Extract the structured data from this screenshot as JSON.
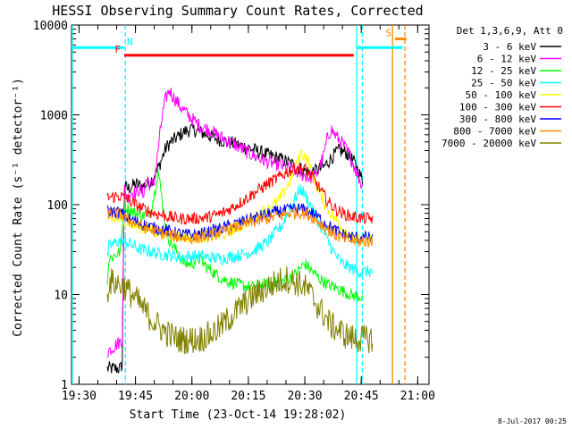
{
  "chart_data": {
    "type": "line",
    "title": "HESSI Observing Summary Count Rates, Corrected",
    "xlabel": "Start Time (23-Oct-14 19:28:02)",
    "ylabel": "Corrected Count Rate (s⁻¹ detector⁻¹)",
    "footer": "8-Jul-2017 00:25",
    "x_unit": "minutes since 19:28:02",
    "xlim": [
      0,
      95
    ],
    "ylim": [
      1,
      10000
    ],
    "yscale": "log",
    "x_ticks": [
      {
        "label": "19:30",
        "x": 2
      },
      {
        "label": "19:45",
        "x": 17
      },
      {
        "label": "20:00",
        "x": 32
      },
      {
        "label": "20:15",
        "x": 47
      },
      {
        "label": "20:30",
        "x": 62
      },
      {
        "label": "20:45",
        "x": 77
      },
      {
        "label": "21:00",
        "x": 92
      }
    ],
    "y_ticks": [
      {
        "label": "1",
        "y": 1
      },
      {
        "label": "10",
        "y": 10
      },
      {
        "label": "100",
        "y": 100
      },
      {
        "label": "1000",
        "y": 1000
      },
      {
        "label": "10000",
        "y": 10000
      }
    ],
    "legend_header": "Det 1,3,6,9, Att 0",
    "legend_position": "right",
    "series": [
      {
        "name": "3 - 6 keV",
        "color": "#000000",
        "points": [
          [
            9.5,
            1.5
          ],
          [
            13,
            1.5
          ],
          [
            13.5,
            1.7
          ],
          [
            14,
            160
          ],
          [
            15,
            150
          ],
          [
            17,
            170
          ],
          [
            19,
            160
          ],
          [
            21,
            180
          ],
          [
            23,
            250
          ],
          [
            25,
            420
          ],
          [
            26,
            480
          ],
          [
            28,
            560
          ],
          [
            30,
            650
          ],
          [
            32,
            690
          ],
          [
            34,
            650
          ],
          [
            36,
            600
          ],
          [
            38,
            550
          ],
          [
            40,
            520
          ],
          [
            43,
            480
          ],
          [
            46,
            440
          ],
          [
            49,
            400
          ],
          [
            52,
            360
          ],
          [
            55,
            330
          ],
          [
            58,
            290
          ],
          [
            61,
            250
          ],
          [
            63,
            230
          ],
          [
            65,
            240
          ],
          [
            67,
            260
          ],
          [
            69,
            330
          ],
          [
            71,
            400
          ],
          [
            73,
            380
          ],
          [
            75,
            300
          ],
          [
            76,
            250
          ],
          [
            77,
            200
          ],
          [
            77.5,
            170
          ]
        ]
      },
      {
        "name": "6 - 12 keV",
        "color": "#ff00ff",
        "points": [
          [
            9.5,
            2.3
          ],
          [
            12,
            2.8
          ],
          [
            13,
            3.0
          ],
          [
            13.5,
            3.2
          ],
          [
            14,
            150
          ],
          [
            15,
            120
          ],
          [
            16,
            140
          ],
          [
            17,
            130
          ],
          [
            18,
            150
          ],
          [
            19,
            130
          ],
          [
            20,
            200
          ],
          [
            21,
            160
          ],
          [
            22,
            180
          ],
          [
            23,
            400
          ],
          [
            24,
            900
          ],
          [
            25,
            1500
          ],
          [
            26,
            1900
          ],
          [
            27,
            1600
          ],
          [
            28,
            1400
          ],
          [
            30,
            1100
          ],
          [
            32,
            900
          ],
          [
            34,
            760
          ],
          [
            36,
            700
          ],
          [
            38,
            620
          ],
          [
            40,
            550
          ],
          [
            43,
            480
          ],
          [
            46,
            400
          ],
          [
            49,
            340
          ],
          [
            52,
            300
          ],
          [
            55,
            280
          ],
          [
            58,
            250
          ],
          [
            61,
            220
          ],
          [
            63,
            200
          ],
          [
            65,
            210
          ],
          [
            67,
            350
          ],
          [
            68,
            550
          ],
          [
            69,
            700
          ],
          [
            70,
            600
          ],
          [
            72,
            480
          ],
          [
            74,
            350
          ],
          [
            76,
            220
          ],
          [
            77.5,
            150
          ]
        ]
      },
      {
        "name": "12 - 25 keV",
        "color": "#00ff00",
        "points": [
          [
            9.5,
            15
          ],
          [
            10,
            25
          ],
          [
            13,
            30
          ],
          [
            14,
            100
          ],
          [
            15,
            90
          ],
          [
            17,
            80
          ],
          [
            19,
            75
          ],
          [
            21,
            85
          ],
          [
            22,
            130
          ],
          [
            23,
            240
          ],
          [
            24,
            120
          ],
          [
            25,
            60
          ],
          [
            26,
            40
          ],
          [
            28,
            30
          ],
          [
            30,
            22
          ],
          [
            32,
            22
          ],
          [
            34,
            25
          ],
          [
            36,
            20
          ],
          [
            40,
            15
          ],
          [
            44,
            13
          ],
          [
            48,
            12
          ],
          [
            52,
            13
          ],
          [
            56,
            14
          ],
          [
            59,
            16
          ],
          [
            61,
            20
          ],
          [
            62,
            22
          ],
          [
            63,
            20
          ],
          [
            64,
            18
          ],
          [
            66,
            15
          ],
          [
            68,
            13
          ],
          [
            70,
            12
          ],
          [
            72,
            11
          ],
          [
            74,
            10
          ],
          [
            76,
            9.5
          ],
          [
            77.5,
            9.5
          ]
        ]
      },
      {
        "name": "25 - 50 keV",
        "color": "#00ffff",
        "points": [
          [
            9.5,
            25
          ],
          [
            10,
            35
          ],
          [
            13,
            40
          ],
          [
            15,
            38
          ],
          [
            18,
            32
          ],
          [
            21,
            30
          ],
          [
            24,
            28
          ],
          [
            27,
            27
          ],
          [
            30,
            26
          ],
          [
            33,
            27
          ],
          [
            36,
            26
          ],
          [
            40,
            25
          ],
          [
            44,
            27
          ],
          [
            48,
            30
          ],
          [
            52,
            38
          ],
          [
            56,
            60
          ],
          [
            58,
            90
          ],
          [
            60,
            130
          ],
          [
            61,
            150
          ],
          [
            62,
            130
          ],
          [
            64,
            90
          ],
          [
            66,
            60
          ],
          [
            68,
            40
          ],
          [
            70,
            28
          ],
          [
            72,
            22
          ],
          [
            74,
            20
          ],
          [
            76,
            18
          ],
          [
            78,
            18
          ],
          [
            80,
            18
          ]
        ]
      },
      {
        "name": "50 - 100 keV",
        "color": "#ffff00",
        "points": [
          [
            9.5,
            65
          ],
          [
            13,
            70
          ],
          [
            16,
            60
          ],
          [
            19,
            55
          ],
          [
            22,
            50
          ],
          [
            25,
            47
          ],
          [
            28,
            45
          ],
          [
            32,
            43
          ],
          [
            36,
            44
          ],
          [
            40,
            46
          ],
          [
            44,
            55
          ],
          [
            48,
            70
          ],
          [
            52,
            90
          ],
          [
            55,
            110
          ],
          [
            58,
            180
          ],
          [
            60,
            300
          ],
          [
            61,
            380
          ],
          [
            62,
            350
          ],
          [
            63,
            300
          ],
          [
            64,
            220
          ],
          [
            66,
            130
          ],
          [
            68,
            90
          ],
          [
            70,
            70
          ],
          [
            72,
            55
          ],
          [
            74,
            45
          ],
          [
            76,
            40
          ],
          [
            78,
            40
          ],
          [
            80,
            40
          ]
        ]
      },
      {
        "name": "100 - 300 keV",
        "color": "#ff0000",
        "points": [
          [
            9.5,
            120
          ],
          [
            13,
            125
          ],
          [
            15,
            115
          ],
          [
            17,
            100
          ],
          [
            19,
            90
          ],
          [
            22,
            80
          ],
          [
            25,
            75
          ],
          [
            28,
            70
          ],
          [
            32,
            70
          ],
          [
            36,
            72
          ],
          [
            40,
            80
          ],
          [
            44,
            100
          ],
          [
            48,
            130
          ],
          [
            52,
            170
          ],
          [
            55,
            200
          ],
          [
            58,
            240
          ],
          [
            60,
            260
          ],
          [
            62,
            250
          ],
          [
            64,
            200
          ],
          [
            66,
            150
          ],
          [
            68,
            110
          ],
          [
            70,
            90
          ],
          [
            72,
            80
          ],
          [
            74,
            75
          ],
          [
            76,
            72
          ],
          [
            78,
            70
          ],
          [
            80,
            70
          ]
        ]
      },
      {
        "name": "300 - 800 keV",
        "color": "#0000ff",
        "points": [
          [
            9.5,
            85
          ],
          [
            13,
            82
          ],
          [
            15,
            70
          ],
          [
            17,
            65
          ],
          [
            19,
            60
          ],
          [
            22,
            55
          ],
          [
            25,
            52
          ],
          [
            28,
            48
          ],
          [
            31,
            46
          ],
          [
            34,
            47
          ],
          [
            37,
            50
          ],
          [
            40,
            55
          ],
          [
            43,
            60
          ],
          [
            46,
            66
          ],
          [
            49,
            72
          ],
          [
            52,
            78
          ],
          [
            55,
            84
          ],
          [
            58,
            88
          ],
          [
            60,
            90
          ],
          [
            62,
            88
          ],
          [
            64,
            80
          ],
          [
            66,
            70
          ],
          [
            68,
            60
          ],
          [
            70,
            52
          ],
          [
            72,
            47
          ],
          [
            74,
            44
          ],
          [
            76,
            43
          ],
          [
            78,
            43
          ],
          [
            80,
            43
          ]
        ]
      },
      {
        "name": "800 - 7000 keV",
        "color": "#ff8800",
        "points": [
          [
            9.5,
            80
          ],
          [
            13,
            78
          ],
          [
            15,
            68
          ],
          [
            17,
            62
          ],
          [
            19,
            56
          ],
          [
            22,
            51
          ],
          [
            25,
            47
          ],
          [
            28,
            44
          ],
          [
            31,
            42
          ],
          [
            34,
            43
          ],
          [
            37,
            46
          ],
          [
            40,
            50
          ],
          [
            43,
            55
          ],
          [
            46,
            60
          ],
          [
            49,
            65
          ],
          [
            52,
            70
          ],
          [
            55,
            75
          ],
          [
            58,
            80
          ],
          [
            60,
            82
          ],
          [
            62,
            80
          ],
          [
            64,
            73
          ],
          [
            66,
            63
          ],
          [
            68,
            53
          ],
          [
            70,
            46
          ],
          [
            72,
            42
          ],
          [
            74,
            40
          ],
          [
            76,
            39
          ],
          [
            78,
            39
          ],
          [
            80,
            39
          ]
        ]
      },
      {
        "name": "7000 - 20000 keV",
        "color": "#808000",
        "points": [
          [
            9.5,
            10
          ],
          [
            10,
            14
          ],
          [
            13,
            13
          ],
          [
            15,
            11
          ],
          [
            17,
            9
          ],
          [
            19,
            7
          ],
          [
            21,
            5.5
          ],
          [
            23,
            4.5
          ],
          [
            25,
            3.8
          ],
          [
            28,
            3.2
          ],
          [
            31,
            3.1
          ],
          [
            34,
            3.2
          ],
          [
            37,
            3.6
          ],
          [
            40,
            4.5
          ],
          [
            43,
            6
          ],
          [
            46,
            8
          ],
          [
            49,
            10
          ],
          [
            52,
            12
          ],
          [
            55,
            14
          ],
          [
            57,
            15
          ],
          [
            59,
            14
          ],
          [
            61,
            13
          ],
          [
            63,
            11
          ],
          [
            65,
            8
          ],
          [
            67,
            6
          ],
          [
            69,
            4.5
          ],
          [
            71,
            4
          ],
          [
            73,
            3.5
          ],
          [
            75,
            3.2
          ],
          [
            77,
            3.2
          ],
          [
            80,
            3.2
          ]
        ]
      }
    ],
    "flags": [
      {
        "label": "N",
        "color": "#00ffff",
        "segments": [
          [
            0,
            14
          ],
          [
            76,
            88
          ]
        ],
        "level": 5600
      },
      {
        "label": "F",
        "color": "#ff0000",
        "segments": [
          [
            14,
            75
          ]
        ],
        "level": 4600
      },
      {
        "label": "S",
        "color": "#ff8800",
        "segments": [
          [
            86,
            89
          ]
        ],
        "level": 7000
      }
    ],
    "markers": [
      {
        "color": "#00ffff",
        "style": "solid",
        "x": 0.2
      },
      {
        "color": "#00ffff",
        "style": "dashed",
        "x": 14.3
      },
      {
        "color": "#00ffff",
        "style": "solid",
        "x": 75.8
      },
      {
        "color": "#00ffff",
        "style": "dashed",
        "x": 77.3
      },
      {
        "color": "#ff8800",
        "style": "solid",
        "x": 85.3
      },
      {
        "color": "#ff8800",
        "style": "dashed",
        "x": 88.6
      }
    ]
  }
}
